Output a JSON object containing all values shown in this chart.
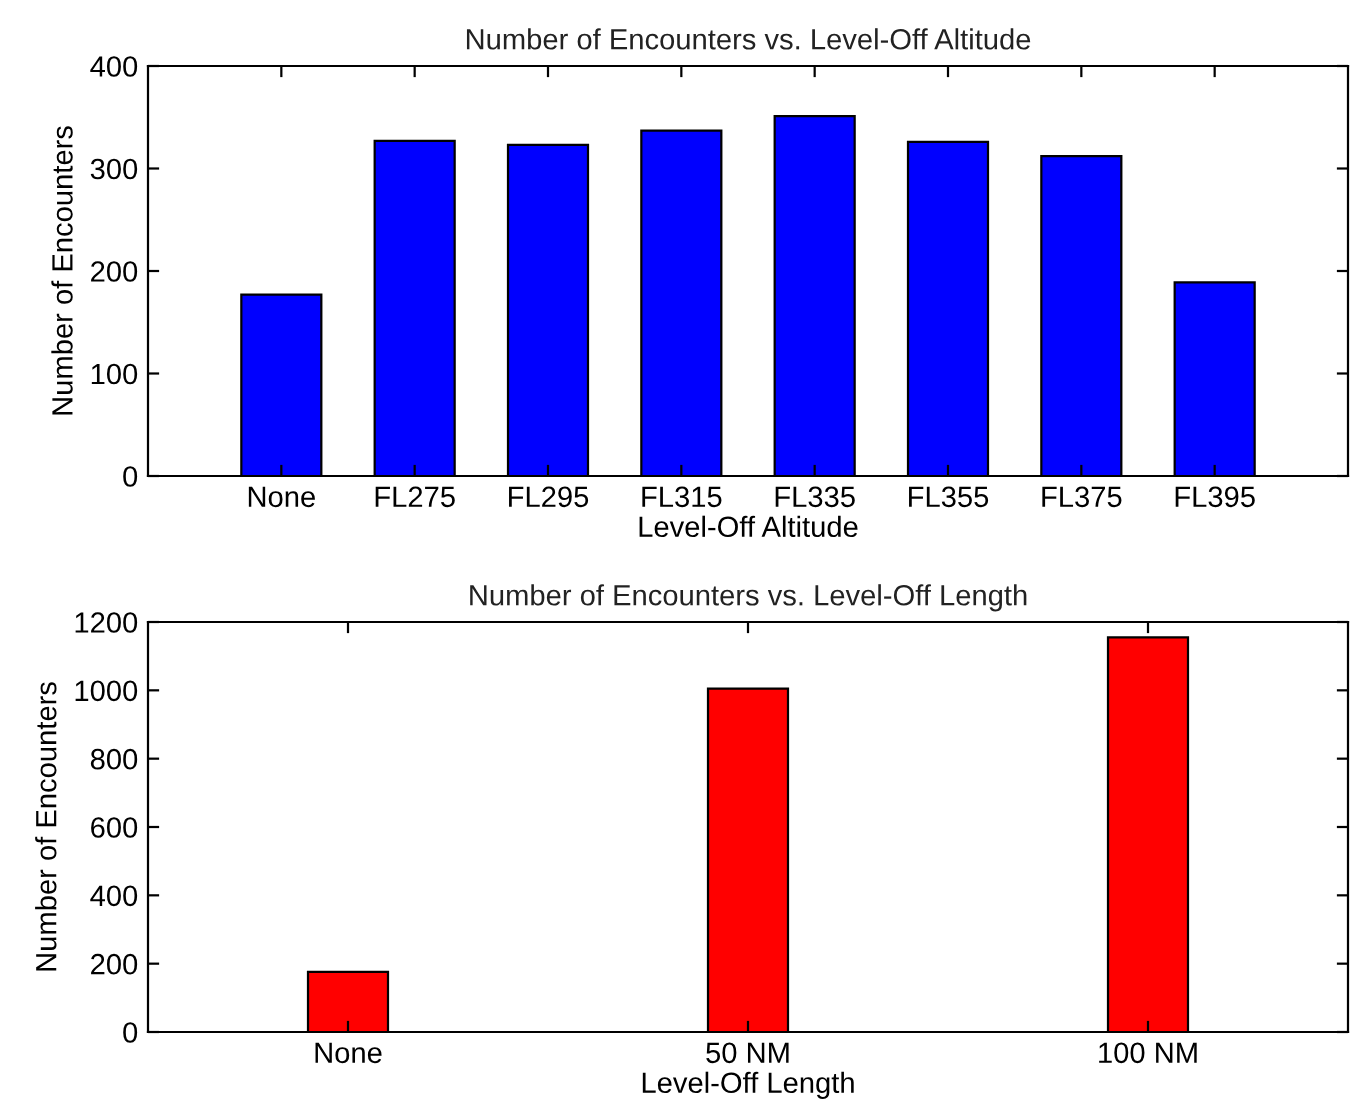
{
  "chart_data": [
    {
      "type": "bar",
      "title": "Number of Encounters vs. Level-Off Altitude",
      "xlabel": "Level-Off Altitude",
      "ylabel": "Number of Encounters",
      "categories": [
        "None",
        "FL275",
        "FL295",
        "FL315",
        "FL335",
        "FL355",
        "FL375",
        "FL395"
      ],
      "values": [
        177,
        327,
        323,
        337,
        351,
        326,
        312,
        189
      ],
      "color": "#0000ff",
      "ylim": [
        0,
        400
      ],
      "yticks": [
        0,
        100,
        200,
        300,
        400
      ],
      "grid": false,
      "legend": false
    },
    {
      "type": "bar",
      "title": "Number of Encounters vs. Level-Off Length",
      "xlabel": "Level-Off Length",
      "ylabel": "Number of Encounters",
      "categories": [
        "None",
        "50 NM",
        "100 NM"
      ],
      "values": [
        176,
        1005,
        1155
      ],
      "color": "#ff0000",
      "ylim": [
        0,
        1200
      ],
      "yticks": [
        0,
        200,
        400,
        600,
        800,
        1000,
        1200
      ],
      "grid": false,
      "legend": false
    }
  ]
}
